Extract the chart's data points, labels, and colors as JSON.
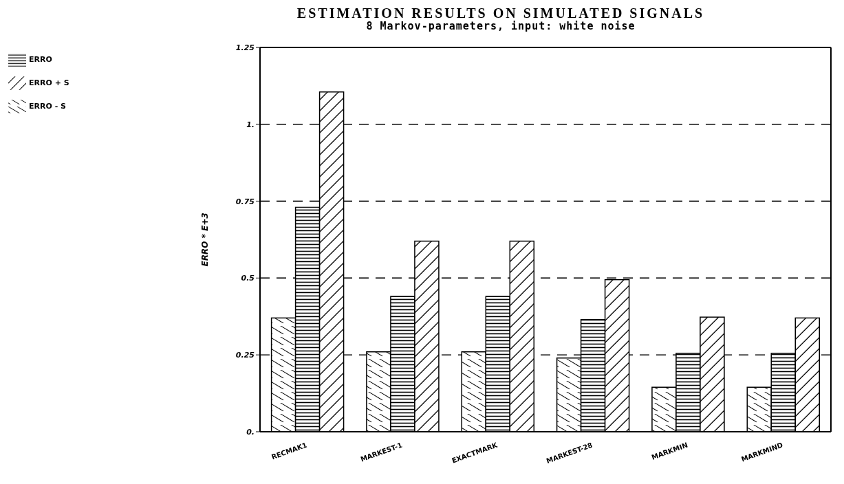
{
  "chart_data": {
    "type": "bar",
    "title": "ESTIMATION RESULTS ON SIMULATED SIGNALS",
    "subtitle": "8 Markov-parameters, input: white noise",
    "ylabel": "ERRO * E+3",
    "categories": [
      "RECMAK1",
      "MARKEST-1",
      "EXACTMARK",
      "MARKEST-28",
      "MARKMIN",
      "MARKMIND"
    ],
    "series": [
      {
        "name": "ERRO - S",
        "color": "#000000",
        "values": [
          0.37,
          0.26,
          0.26,
          0.24,
          0.145,
          0.145
        ]
      },
      {
        "name": "ERRO",
        "color": "#000000",
        "values": [
          0.73,
          0.44,
          0.44,
          0.365,
          0.255,
          0.255
        ]
      },
      {
        "name": "ERRO + S",
        "color": "#000000",
        "values": [
          1.105,
          0.62,
          0.62,
          0.495,
          0.373,
          0.37
        ]
      }
    ],
    "ylim": [
      0,
      1.25
    ],
    "yticks": [
      {
        "value": 0,
        "label": "0."
      },
      0.25,
      0.5,
      0.75,
      {
        "value": 1,
        "label": "1."
      },
      1.25
    ],
    "grid": "y",
    "legend": "top left"
  }
}
